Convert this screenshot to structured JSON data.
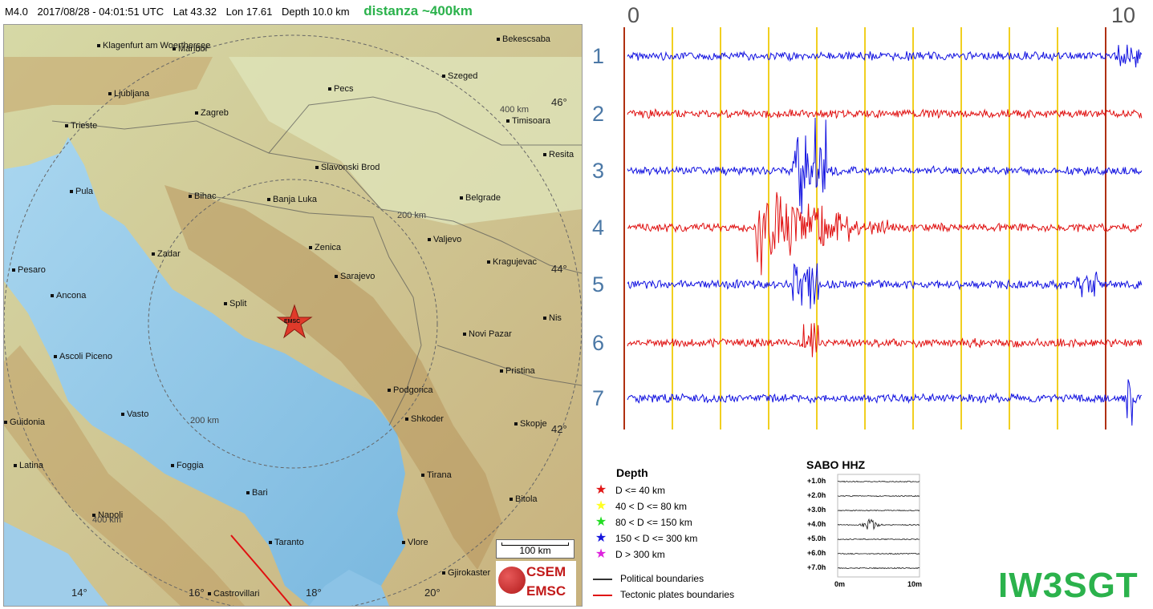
{
  "header": {
    "magnitude": "M4.0",
    "datetime": "2017/08/28 - 04:01:51 UTC",
    "lat": "Lat 43.32",
    "lon": "Lon 17.61",
    "depth": "Depth 10.0 km",
    "distance": "distanza ~400km"
  },
  "map": {
    "cities": [
      {
        "name": "Klagenfurt am Woerthersee"
      },
      {
        "name": "Maribor"
      },
      {
        "name": "Bekescsaba"
      },
      {
        "name": "Ljubljana"
      },
      {
        "name": "Szeged"
      },
      {
        "name": "Pecs"
      },
      {
        "name": "Zagreb"
      },
      {
        "name": "Trieste"
      },
      {
        "name": "Timisoara"
      },
      {
        "name": "Resita"
      },
      {
        "name": "Slavonski Brod"
      },
      {
        "name": "Pula"
      },
      {
        "name": "Bihac"
      },
      {
        "name": "Banja Luka"
      },
      {
        "name": "Belgrade"
      },
      {
        "name": "Valjevo"
      },
      {
        "name": "Zenica"
      },
      {
        "name": "Zadar"
      },
      {
        "name": "Kragujevac"
      },
      {
        "name": "Sarajevo"
      },
      {
        "name": "Pesaro"
      },
      {
        "name": "Ancona"
      },
      {
        "name": "Split"
      },
      {
        "name": "Nis"
      },
      {
        "name": "Novi Pazar"
      },
      {
        "name": "Ascoli Piceno"
      },
      {
        "name": "Pristina"
      },
      {
        "name": "Podgorica"
      },
      {
        "name": "Vasto"
      },
      {
        "name": "Shkoder"
      },
      {
        "name": "Skopje"
      },
      {
        "name": "Guidonia"
      },
      {
        "name": "Latina"
      },
      {
        "name": "Foggia"
      },
      {
        "name": "Tirana"
      },
      {
        "name": "Bari"
      },
      {
        "name": "Bitola"
      },
      {
        "name": "Napoli"
      },
      {
        "name": "Taranto"
      },
      {
        "name": "Vlore"
      },
      {
        "name": "Gjirokaster"
      },
      {
        "name": "Castrovillari"
      }
    ],
    "distance_labels": [
      "400 km",
      "200 km",
      "200 km",
      "400 km"
    ],
    "lat_labels": [
      "46°",
      "44°",
      "42°"
    ],
    "lon_labels": [
      "14°",
      "16°",
      "18°",
      "20°"
    ],
    "epicenter_label": "EMSC",
    "scale_label": "100 km",
    "logo_top": "CSEM",
    "logo_bottom": "EMSC"
  },
  "seismogram": {
    "time_start": "0",
    "time_end": "10",
    "rows": [
      {
        "label": "1",
        "color": "#1010e0"
      },
      {
        "label": "2",
        "color": "#e01010"
      },
      {
        "label": "3",
        "color": "#1010e0"
      },
      {
        "label": "4",
        "color": "#e01010"
      },
      {
        "label": "5",
        "color": "#1010e0"
      },
      {
        "label": "6",
        "color": "#e01010"
      },
      {
        "label": "7",
        "color": "#1010e0"
      }
    ]
  },
  "legend": {
    "title": "Depth",
    "items": [
      {
        "label": "D <= 40 km",
        "color": "#e11818"
      },
      {
        "label": "40 < D <= 80 km",
        "color": "#ffff22"
      },
      {
        "label": "80 < D <= 150 km",
        "color": "#22dd22"
      },
      {
        "label": "150 < D <= 300 km",
        "color": "#1515dd"
      },
      {
        "label": "D > 300 km",
        "color": "#dd22dd"
      }
    ],
    "lines": [
      {
        "label": "Political boundaries",
        "color": "#333333"
      },
      {
        "label": "Tectonic plates boundaries",
        "color": "#e01010"
      }
    ]
  },
  "helicorder": {
    "title": "SABO HHZ",
    "rows": [
      "+1.0h",
      "+2.0h",
      "+3.0h",
      "+4.0h",
      "+5.0h",
      "+6.0h",
      "+7.0h"
    ],
    "x_start": "0m",
    "x_end": "10m"
  },
  "callsign": "IW3SGT"
}
